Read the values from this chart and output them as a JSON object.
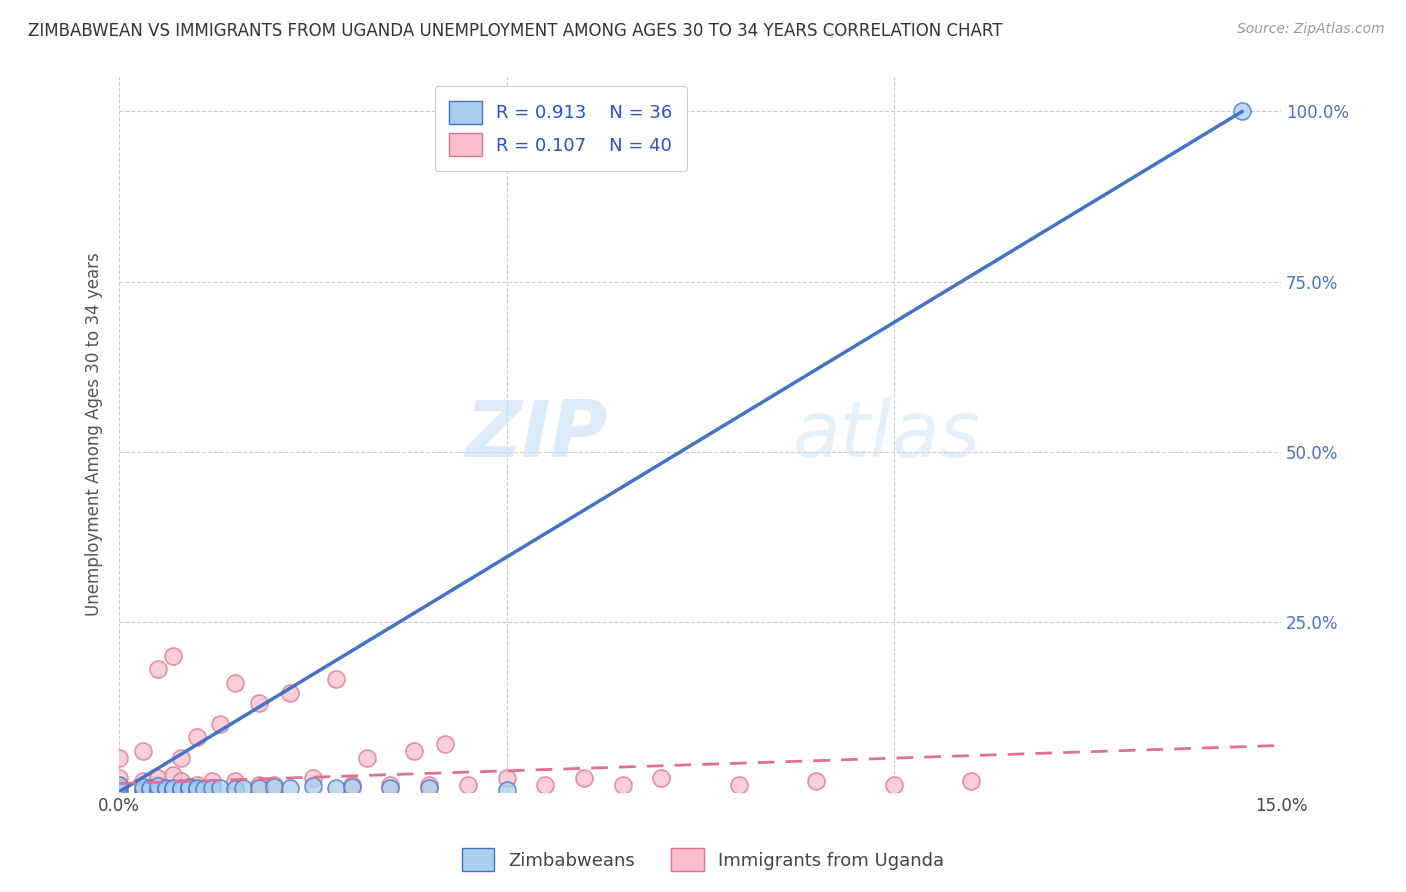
{
  "title": "ZIMBABWEAN VS IMMIGRANTS FROM UGANDA UNEMPLOYMENT AMONG AGES 30 TO 34 YEARS CORRELATION CHART",
  "source": "Source: ZipAtlas.com",
  "ylabel": "Unemployment Among Ages 30 to 34 years",
  "xlim": [
    0.0,
    0.15
  ],
  "ylim": [
    0.0,
    1.05
  ],
  "x_ticks": [
    0.0,
    0.05,
    0.1,
    0.15
  ],
  "x_tick_labels": [
    "0.0%",
    "",
    "",
    "15.0%"
  ],
  "y_ticks": [
    0.0,
    0.25,
    0.5,
    0.75,
    1.0
  ],
  "y_tick_labels": [
    "",
    "25.0%",
    "50.0%",
    "75.0%",
    "100.0%"
  ],
  "background_color": "#ffffff",
  "grid_color": "#cccccc",
  "zim_color": "#a8cff0",
  "uga_color": "#f9bfcc",
  "zim_line_color": "#4472c4",
  "uga_line_color": "#e07090",
  "R_zim": 0.913,
  "N_zim": 36,
  "R_uga": 0.107,
  "N_uga": 40,
  "legend_label_zim": "Zimbabweans",
  "legend_label_uga": "Immigrants from Uganda",
  "watermark_zip": "ZIP",
  "watermark_atlas": "atlas",
  "zim_line_x": [
    0.0,
    0.145
  ],
  "zim_line_y": [
    0.0,
    1.0
  ],
  "uga_line_x": [
    0.0,
    0.15
  ],
  "uga_line_y": [
    0.012,
    0.068
  ],
  "zim_scatter_x": [
    0.0,
    0.0,
    0.0,
    0.003,
    0.003,
    0.003,
    0.004,
    0.004,
    0.005,
    0.005,
    0.005,
    0.006,
    0.006,
    0.007,
    0.007,
    0.008,
    0.008,
    0.009,
    0.009,
    0.01,
    0.01,
    0.011,
    0.012,
    0.013,
    0.015,
    0.016,
    0.018,
    0.02,
    0.022,
    0.025,
    0.028,
    0.03,
    0.035,
    0.04,
    0.05,
    0.145
  ],
  "zim_scatter_y": [
    0.0,
    0.005,
    0.01,
    0.0,
    0.003,
    0.007,
    0.002,
    0.005,
    0.0,
    0.003,
    0.008,
    0.002,
    0.005,
    0.003,
    0.006,
    0.002,
    0.005,
    0.004,
    0.007,
    0.003,
    0.006,
    0.004,
    0.005,
    0.006,
    0.004,
    0.006,
    0.005,
    0.007,
    0.006,
    0.008,
    0.005,
    0.007,
    0.006,
    0.005,
    0.003,
    1.0
  ],
  "uga_scatter_x": [
    0.0,
    0.0,
    0.0,
    0.003,
    0.003,
    0.005,
    0.005,
    0.005,
    0.007,
    0.007,
    0.008,
    0.008,
    0.01,
    0.01,
    0.012,
    0.013,
    0.015,
    0.015,
    0.018,
    0.018,
    0.02,
    0.022,
    0.025,
    0.028,
    0.03,
    0.032,
    0.035,
    0.038,
    0.04,
    0.042,
    0.045,
    0.05,
    0.055,
    0.06,
    0.065,
    0.07,
    0.08,
    0.09,
    0.1,
    0.11
  ],
  "uga_scatter_y": [
    0.01,
    0.02,
    0.05,
    0.015,
    0.06,
    0.01,
    0.02,
    0.18,
    0.025,
    0.2,
    0.015,
    0.05,
    0.01,
    0.08,
    0.015,
    0.1,
    0.015,
    0.16,
    0.01,
    0.13,
    0.01,
    0.145,
    0.02,
    0.165,
    0.01,
    0.05,
    0.01,
    0.06,
    0.01,
    0.07,
    0.01,
    0.02,
    0.01,
    0.02,
    0.01,
    0.02,
    0.01,
    0.015,
    0.01,
    0.015
  ]
}
